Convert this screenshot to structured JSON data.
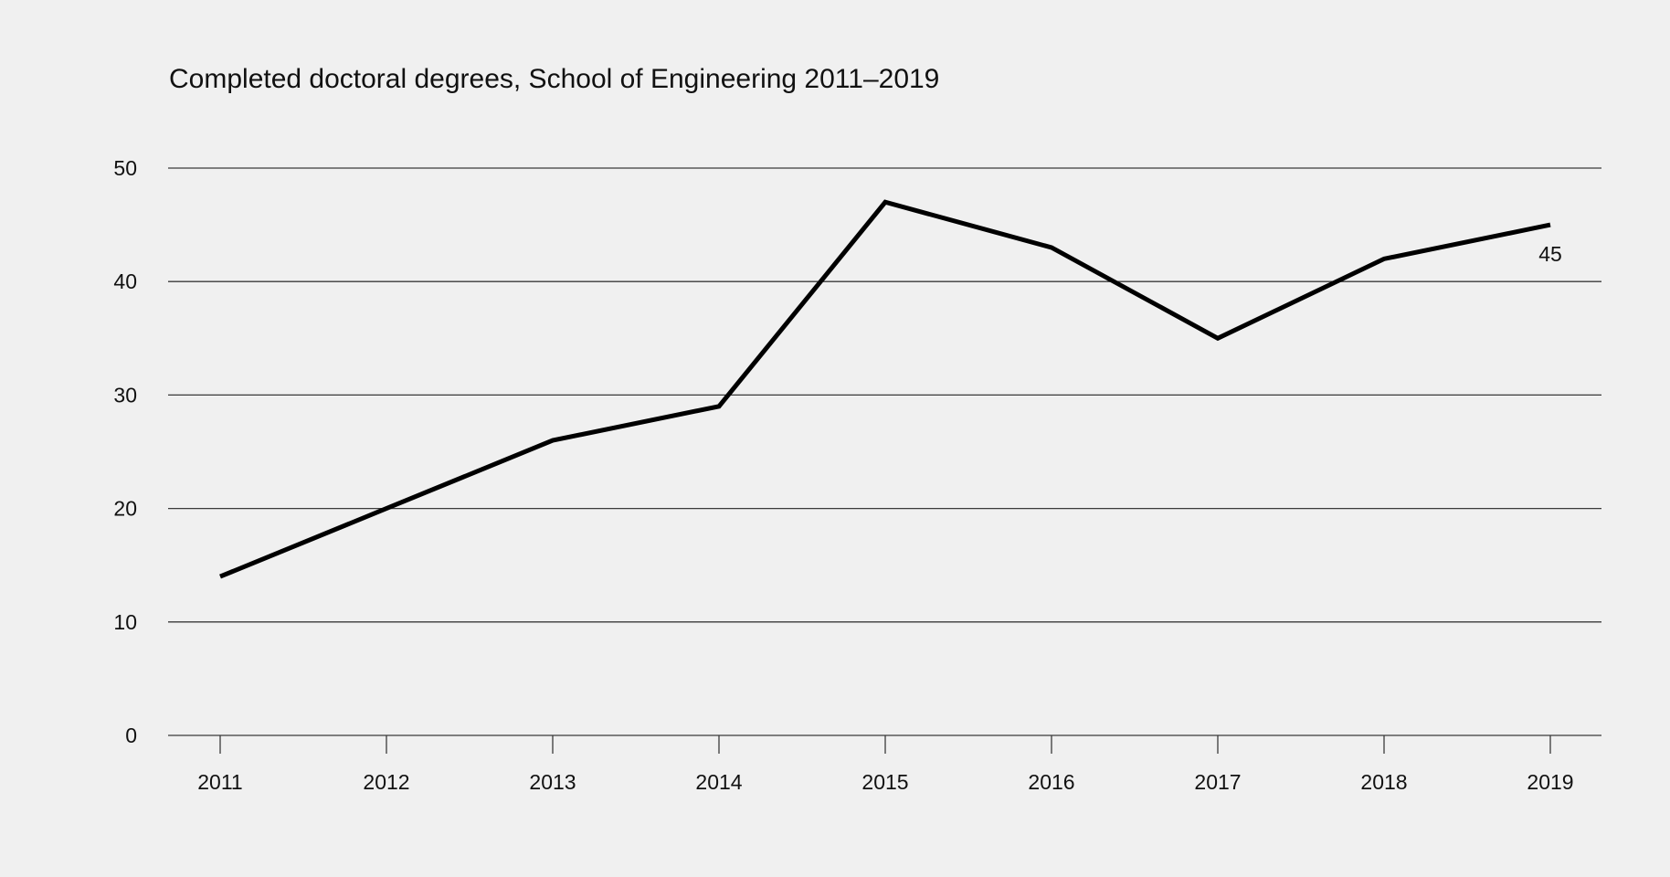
{
  "chart_data": {
    "type": "line",
    "title": "Completed doctoral degrees, School of Engineering 2011–2019",
    "xlabel": "",
    "ylabel": "",
    "categories": [
      "2011",
      "2012",
      "2013",
      "2014",
      "2015",
      "2016",
      "2017",
      "2018",
      "2019"
    ],
    "series": [
      {
        "name": "Completed doctoral degrees",
        "values": [
          14,
          20,
          26,
          29,
          47,
          43,
          35,
          42,
          45
        ],
        "color": "#000000"
      }
    ],
    "ylim": [
      0,
      50
    ],
    "yticks": [
      "0",
      "10",
      "20",
      "30",
      "40",
      "50"
    ],
    "ytick_values": [
      0,
      10,
      20,
      30,
      40,
      50
    ],
    "grid": true,
    "legend": "none",
    "annotations": [
      {
        "category": "2019",
        "text": "45",
        "position": "below"
      }
    ],
    "background": "#f0f0f0",
    "gridline_color": "#3a3a3a"
  }
}
